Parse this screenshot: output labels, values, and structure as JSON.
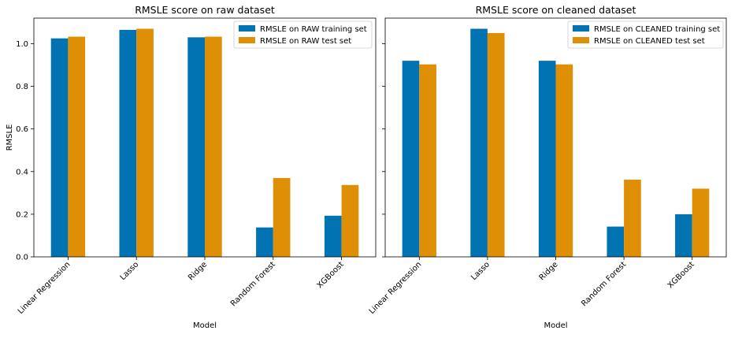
{
  "chart_data": [
    {
      "type": "bar",
      "title": "RMSLE score on raw dataset",
      "xlabel": "Model",
      "ylabel": "RMSLE",
      "ylim": [
        0,
        1.12
      ],
      "yticks": [
        0.0,
        0.2,
        0.4,
        0.6,
        0.8,
        1.0
      ],
      "ytick_labels": [
        "0.0",
        "0.2",
        "0.4",
        "0.6",
        "0.8",
        "1.0"
      ],
      "categories": [
        "Linear Regression",
        "Lasso",
        "Ridge",
        "Random Forest",
        "XGBoost"
      ],
      "legend_position": "top-right",
      "series": [
        {
          "name": "RMSLE on RAW training set",
          "color": "#0173b2",
          "values": [
            1.025,
            1.065,
            1.03,
            0.138,
            0.193
          ]
        },
        {
          "name": "RMSLE on RAW test set",
          "color": "#de8f05",
          "values": [
            1.033,
            1.07,
            1.033,
            0.37,
            0.337
          ]
        }
      ]
    },
    {
      "type": "bar",
      "title": "RMSLE score on cleaned dataset",
      "xlabel": "Model",
      "ylabel": "",
      "ylim": [
        0,
        1.12
      ],
      "yticks": [
        0.0,
        0.2,
        0.4,
        0.6,
        0.8,
        1.0
      ],
      "ytick_labels": [],
      "categories": [
        "Linear Regression",
        "Lasso",
        "Ridge",
        "Random Forest",
        "XGBoost"
      ],
      "legend_position": "top-right",
      "series": [
        {
          "name": "RMSLE on CLEANED training set",
          "color": "#0173b2",
          "values": [
            0.92,
            1.07,
            0.92,
            0.142,
            0.2
          ]
        },
        {
          "name": "RMSLE on CLEANED test set",
          "color": "#de8f05",
          "values": [
            0.903,
            1.05,
            0.903,
            0.362,
            0.32
          ]
        }
      ]
    }
  ]
}
